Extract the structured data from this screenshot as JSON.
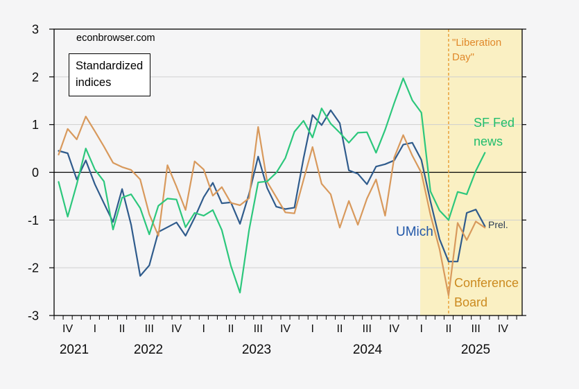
{
  "page": {
    "watermark": "econbrowser.com",
    "index_box": {
      "line1": "Standardized",
      "line2": "indices"
    }
  },
  "annotations": {
    "liberation": {
      "line1": "\"Liberation",
      "line2": "Day\""
    },
    "sf_fed": {
      "line1": "SF Fed",
      "line2": "news"
    },
    "umich": "UMich",
    "prel": "Prel.",
    "conference_board": {
      "line1": "Conference",
      "line2": "Board"
    }
  },
  "colors": {
    "umich_line": "#2f5b8c",
    "conference_board_line": "#d8995c",
    "sf_fed_line": "#2cc77c",
    "shaded_band": "#faf0c3",
    "vline": "#e89a30",
    "grid": "#cfcfcf",
    "axis": "#000000"
  },
  "chart_data": {
    "type": "line",
    "title": "Standardized indices",
    "x": [
      "2021-09",
      "2021-10",
      "2021-11",
      "2021-12",
      "2022-01",
      "2022-02",
      "2022-03",
      "2022-04",
      "2022-05",
      "2022-06",
      "2022-07",
      "2022-08",
      "2022-09",
      "2022-10",
      "2022-11",
      "2022-12",
      "2023-01",
      "2023-02",
      "2023-03",
      "2023-04",
      "2023-05",
      "2023-06",
      "2023-07",
      "2023-08",
      "2023-09",
      "2023-10",
      "2023-11",
      "2023-12",
      "2024-01",
      "2024-02",
      "2024-03",
      "2024-04",
      "2024-05",
      "2024-06",
      "2024-07",
      "2024-08",
      "2024-09",
      "2024-10",
      "2024-11",
      "2024-12",
      "2025-01",
      "2025-02",
      "2025-03",
      "2025-04",
      "2025-05",
      "2025-06",
      "2025-07",
      "2025-08"
    ],
    "series": [
      {
        "name": "UMich",
        "note_on_last_point": "Prel.",
        "values": [
          0.45,
          0.4,
          -0.15,
          0.25,
          -0.25,
          -0.65,
          -1.04,
          -0.35,
          -1.1,
          -2.17,
          -1.95,
          -1.25,
          -1.15,
          -1.05,
          -1.33,
          -0.95,
          -0.52,
          -0.22,
          -0.65,
          -0.63,
          -1.08,
          -0.45,
          0.33,
          -0.33,
          -0.72,
          -0.77,
          -0.74,
          0.29,
          1.2,
          0.99,
          1.3,
          1.03,
          0.04,
          -0.03,
          -0.25,
          0.12,
          0.17,
          0.25,
          0.58,
          0.62,
          0.26,
          -0.61,
          -1.4,
          -1.87,
          -1.87,
          -0.85,
          -0.78,
          -1.13
        ]
      },
      {
        "name": "Conference Board",
        "values": [
          0.37,
          0.91,
          0.69,
          1.17,
          0.86,
          0.54,
          0.2,
          0.11,
          0.05,
          -0.15,
          -0.88,
          -1.33,
          0.15,
          -0.3,
          -0.79,
          0.23,
          0.06,
          -0.49,
          -0.31,
          -0.64,
          -0.69,
          -0.54,
          0.95,
          -0.2,
          -0.52,
          -0.84,
          -0.86,
          -0.16,
          0.53,
          -0.24,
          -0.46,
          -1.16,
          -0.6,
          -1.1,
          -0.55,
          -0.15,
          -0.91,
          0.31,
          0.78,
          0.35,
          -0.01,
          -0.89,
          -1.61,
          -2.58,
          -1.06,
          -1.42,
          -1.03,
          -1.16
        ]
      },
      {
        "name": "SF Fed news",
        "values": [
          -0.2,
          -0.93,
          -0.25,
          0.5,
          0.06,
          -0.19,
          -1.2,
          -0.53,
          -0.46,
          -0.75,
          -1.3,
          -0.7,
          -0.55,
          -0.57,
          -1.15,
          -0.85,
          -0.91,
          -0.79,
          -1.21,
          -1.96,
          -2.52,
          -1.21,
          -0.21,
          -0.19,
          -0.01,
          0.3,
          0.85,
          1.08,
          0.73,
          1.34,
          1.02,
          0.83,
          0.62,
          0.83,
          0.84,
          0.41,
          0.89,
          1.45,
          1.97,
          1.51,
          1.25,
          -0.4,
          -0.8,
          -1.0,
          -0.41,
          -0.46,
          0.03,
          0.41
        ]
      }
    ],
    "ylim": [
      -3,
      3
    ],
    "y_ticks": [
      "3",
      "2",
      "1",
      "0",
      "-1",
      "-2",
      "-3"
    ],
    "y_tick_values": [
      3,
      2,
      1,
      0,
      -1,
      -2,
      -3
    ],
    "x_axis_start": "2021-09",
    "x_axis_end": "2025-12",
    "x_quarter_labels": [
      "IV",
      "I",
      "II",
      "III",
      "IV",
      "I",
      "II",
      "III",
      "IV",
      "I",
      "II",
      "III",
      "IV",
      "I",
      "II",
      "III",
      "IV"
    ],
    "x_year_labels": [
      "2021",
      "2022",
      "2023",
      "2024",
      "2025"
    ],
    "grid": true,
    "zero_line": true,
    "legend_position": "annotations-on-chart",
    "shaded_region": {
      "start": "2025-01",
      "end": "2025-12"
    },
    "vline": {
      "x": "2025-04",
      "style": "dashed",
      "label": "\"Liberation Day\""
    }
  }
}
